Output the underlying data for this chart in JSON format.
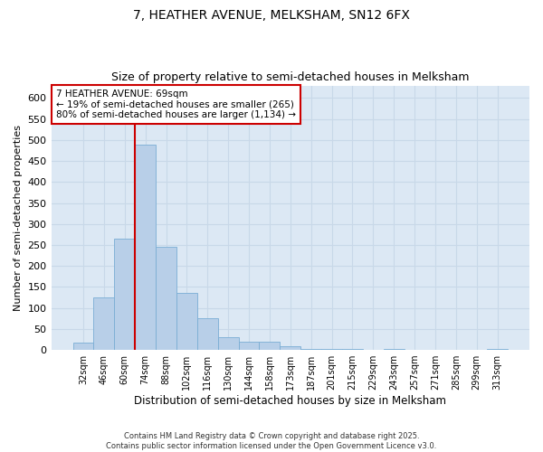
{
  "title": "7, HEATHER AVENUE, MELKSHAM, SN12 6FX",
  "subtitle": "Size of property relative to semi-detached houses in Melksham",
  "xlabel": "Distribution of semi-detached houses by size in Melksham",
  "ylabel": "Number of semi-detached properties",
  "categories": [
    "32sqm",
    "46sqm",
    "60sqm",
    "74sqm",
    "88sqm",
    "102sqm",
    "116sqm",
    "130sqm",
    "144sqm",
    "158sqm",
    "173sqm",
    "187sqm",
    "201sqm",
    "215sqm",
    "229sqm",
    "243sqm",
    "257sqm",
    "271sqm",
    "285sqm",
    "299sqm",
    "313sqm"
  ],
  "values": [
    18,
    125,
    265,
    490,
    245,
    135,
    75,
    30,
    20,
    20,
    8,
    3,
    3,
    3,
    0,
    3,
    0,
    0,
    0,
    0,
    3
  ],
  "bar_color": "#b8cfe8",
  "bar_edge_color": "#7aadd4",
  "vline_color": "#cc0000",
  "annotation_text": "7 HEATHER AVENUE: 69sqm\n← 19% of semi-detached houses are smaller (265)\n80% of semi-detached houses are larger (1,134) →",
  "annotation_box_color": "#cc0000",
  "ylim": [
    0,
    630
  ],
  "yticks": [
    0,
    50,
    100,
    150,
    200,
    250,
    300,
    350,
    400,
    450,
    500,
    550,
    600
  ],
  "grid_color": "#c8d8e8",
  "bg_color": "#dce8f4",
  "footer": "Contains HM Land Registry data © Crown copyright and database right 2025.\nContains public sector information licensed under the Open Government Licence v3.0.",
  "title_fontsize": 10,
  "subtitle_fontsize": 9,
  "vline_x_index": 2.5
}
